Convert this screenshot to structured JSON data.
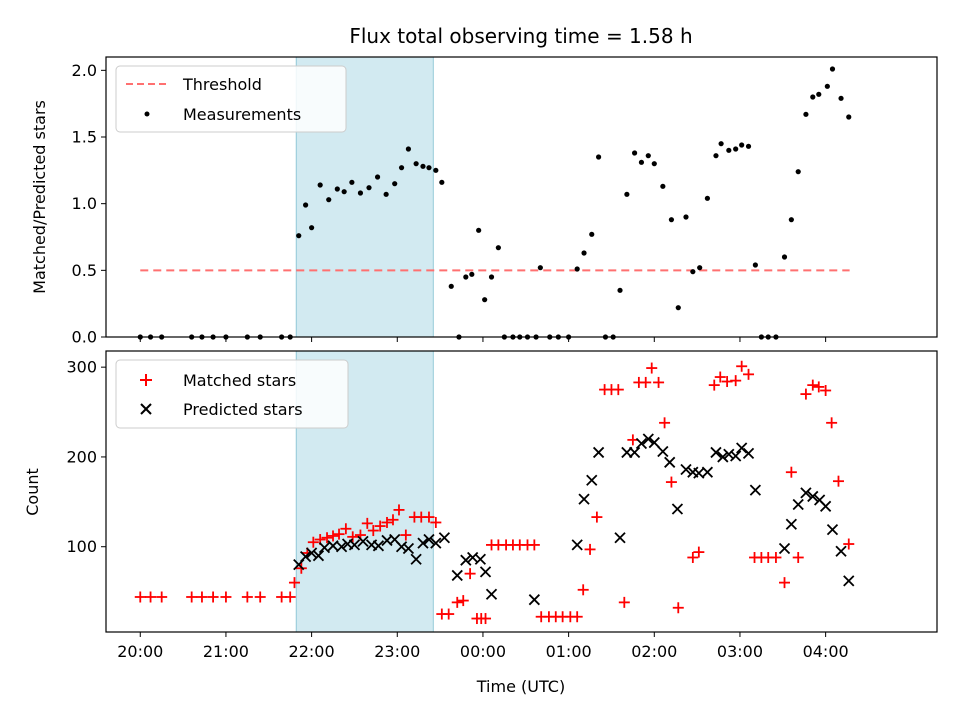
{
  "figure": {
    "title": "Flux total observing time = 1.58 h",
    "xlabel": "Time (UTC)",
    "x_ticks": [
      "20:00",
      "21:00",
      "22:00",
      "23:00",
      "00:00",
      "01:00",
      "02:00",
      "03:00",
      "04:00"
    ],
    "x_tick_hours": [
      20,
      21,
      22,
      23,
      24,
      25,
      26,
      27,
      28
    ],
    "xlim_hours": [
      19.6,
      29.3
    ],
    "shaded_span_hours": [
      21.82,
      23.42
    ],
    "shaded_color": "#add8e6"
  },
  "chart_data": [
    {
      "type": "scatter",
      "ylabel": "Matched/Predicted stars",
      "ylim": [
        0,
        2.1
      ],
      "y_ticks": [
        0.0,
        0.5,
        1.0,
        1.5,
        2.0
      ],
      "y_tick_labels": [
        "0.0",
        "0.5",
        "1.0",
        "1.5",
        "2.0"
      ],
      "legend": {
        "placement": "upper-left",
        "entries": [
          "Threshold",
          "Measurements"
        ]
      },
      "threshold": {
        "name": "Threshold",
        "value": 0.5,
        "x_range": [
          20.0,
          28.28
        ],
        "color": "#ff7070",
        "style": "dashed"
      },
      "series": [
        {
          "name": "Measurements",
          "marker": "dot",
          "color": "#000000",
          "x": [
            20.0,
            20.12,
            20.25,
            20.6,
            20.72,
            20.85,
            21.0,
            21.25,
            21.4,
            21.65,
            21.75,
            21.85,
            21.93,
            22.0,
            22.1,
            22.2,
            22.3,
            22.38,
            22.47,
            22.57,
            22.67,
            22.77,
            22.87,
            22.97,
            23.05,
            23.13,
            23.22,
            23.3,
            23.37,
            23.45,
            23.52,
            23.63,
            23.72,
            23.8,
            23.87,
            23.95,
            24.02,
            24.1,
            24.18,
            24.25,
            24.35,
            24.43,
            24.52,
            24.62,
            24.67,
            24.78,
            24.88,
            25.0,
            25.1,
            25.18,
            25.27,
            25.35,
            25.43,
            25.52,
            25.6,
            25.68,
            25.77,
            25.85,
            25.93,
            26.0,
            26.1,
            26.2,
            26.28,
            26.37,
            26.45,
            26.53,
            26.62,
            26.72,
            26.78,
            26.87,
            26.95,
            27.02,
            27.1,
            27.18,
            27.25,
            27.33,
            27.42,
            27.52,
            27.6,
            27.68,
            27.77,
            27.85,
            27.92,
            28.02,
            28.08,
            28.18,
            28.27
          ],
          "y": [
            0.0,
            0.0,
            0.0,
            0.0,
            0.0,
            0.0,
            0.0,
            0.0,
            0.0,
            0.0,
            0.0,
            0.76,
            0.99,
            0.82,
            1.14,
            1.03,
            1.11,
            1.09,
            1.16,
            1.08,
            1.12,
            1.2,
            1.07,
            1.15,
            1.27,
            1.41,
            1.3,
            1.28,
            1.27,
            1.25,
            1.16,
            0.38,
            0.0,
            0.45,
            0.47,
            0.8,
            0.28,
            0.45,
            0.67,
            0.0,
            0.0,
            0.0,
            0.0,
            0.0,
            0.52,
            0.0,
            0.0,
            0.0,
            0.51,
            0.63,
            0.77,
            1.35,
            0.0,
            0.0,
            0.35,
            1.07,
            1.38,
            1.31,
            1.36,
            1.3,
            1.13,
            0.88,
            0.22,
            0.9,
            0.49,
            0.52,
            1.04,
            1.36,
            1.45,
            1.4,
            1.41,
            1.44,
            1.43,
            0.54,
            0.0,
            0.0,
            0.0,
            0.6,
            0.88,
            1.24,
            1.67,
            1.8,
            1.82,
            1.88,
            2.01,
            1.79,
            1.65
          ]
        }
      ]
    },
    {
      "type": "scatter",
      "ylabel": "Count",
      "ylim": [
        5,
        318
      ],
      "y_ticks": [
        100,
        200,
        300
      ],
      "y_tick_labels": [
        "100",
        "200",
        "300"
      ],
      "legend": {
        "placement": "upper-left",
        "entries": [
          "Matched stars",
          "Predicted stars"
        ]
      },
      "series": [
        {
          "name": "Matched stars",
          "marker": "plus",
          "color": "#ff0000",
          "x": [
            20.0,
            20.12,
            20.25,
            20.6,
            20.72,
            20.85,
            21.0,
            21.25,
            21.4,
            21.65,
            21.75,
            21.8,
            21.88,
            21.95,
            22.02,
            22.1,
            22.18,
            22.25,
            22.32,
            22.4,
            22.48,
            22.57,
            22.65,
            22.72,
            22.8,
            22.88,
            22.95,
            23.02,
            23.1,
            23.2,
            23.28,
            23.37,
            23.45,
            23.52,
            23.6,
            23.7,
            23.77,
            23.85,
            23.93,
            23.98,
            24.03,
            24.1,
            24.18,
            24.27,
            24.35,
            24.43,
            24.52,
            24.6,
            24.68,
            24.77,
            24.85,
            24.93,
            25.02,
            25.1,
            25.17,
            25.25,
            25.33,
            25.42,
            25.5,
            25.58,
            25.65,
            25.75,
            25.82,
            25.9,
            25.97,
            26.05,
            26.12,
            26.2,
            26.28,
            26.45,
            26.52,
            26.7,
            26.77,
            26.85,
            26.95,
            27.02,
            27.1,
            27.17,
            27.25,
            27.33,
            27.42,
            27.52,
            27.6,
            27.68,
            27.77,
            27.85,
            27.92,
            28.0,
            28.07,
            28.15,
            28.27
          ],
          "y": [
            44,
            44,
            44,
            44,
            44,
            44,
            44,
            44,
            44,
            44,
            44,
            60,
            76,
            93,
            105,
            108,
            110,
            112,
            114,
            120,
            111,
            113,
            126,
            118,
            123,
            127,
            130,
            141,
            113,
            133,
            133,
            133,
            127,
            25,
            25,
            38,
            40,
            70,
            20,
            20,
            20,
            102,
            102,
            102,
            102,
            102,
            102,
            102,
            22,
            22,
            22,
            22,
            22,
            22,
            52,
            97,
            133,
            275,
            275,
            275,
            38,
            219,
            283,
            283,
            299,
            283,
            238,
            172,
            32,
            88,
            94,
            280,
            289,
            284,
            285,
            301,
            292,
            88,
            88,
            88,
            88,
            60,
            183,
            88,
            270,
            280,
            278,
            274,
            238,
            173,
            103
          ],
          "y_note": ""
        },
        {
          "name": "Predicted stars",
          "marker": "x",
          "color": "#000000",
          "x": [
            21.85,
            21.93,
            22.0,
            22.08,
            22.15,
            22.25,
            22.35,
            22.42,
            22.5,
            22.6,
            22.7,
            22.78,
            22.88,
            22.97,
            23.05,
            23.13,
            23.22,
            23.3,
            23.37,
            23.45,
            23.55,
            23.7,
            23.8,
            23.88,
            23.97,
            24.03,
            24.1,
            24.6,
            25.1,
            25.18,
            25.27,
            25.35,
            25.6,
            25.68,
            25.77,
            25.85,
            25.93,
            26.0,
            26.1,
            26.18,
            26.27,
            26.37,
            26.45,
            26.52,
            26.62,
            26.72,
            26.8,
            26.87,
            26.95,
            27.02,
            27.1,
            27.18,
            27.52,
            27.6,
            27.68,
            27.77,
            27.85,
            27.93,
            28.0,
            28.08,
            28.18,
            28.27
          ],
          "y": [
            80,
            89,
            93,
            90,
            99,
            101,
            100,
            103,
            102,
            106,
            102,
            101,
            107,
            108,
            100,
            98,
            86,
            104,
            108,
            104,
            110,
            68,
            85,
            88,
            86,
            72,
            47,
            41,
            102,
            153,
            174,
            205,
            110,
            205,
            205,
            215,
            220,
            216,
            206,
            194,
            142,
            186,
            183,
            182,
            183,
            205,
            200,
            203,
            201,
            210,
            204,
            163,
            98,
            125,
            147,
            160,
            156,
            152,
            145,
            119,
            95,
            62
          ]
        }
      ]
    }
  ]
}
